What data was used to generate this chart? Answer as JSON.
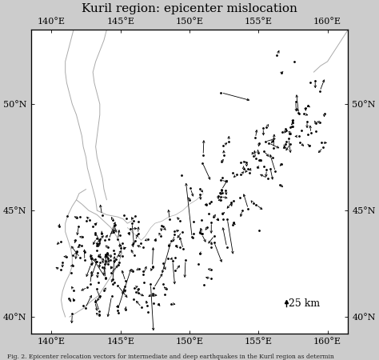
{
  "title": "Kuril region: epicenter mislocation",
  "caption": "Fig. 2. Epicenter relocation vectors for intermediate and deep earthquakes in the Kuril region as determin",
  "lon_min": 138.5,
  "lon_max": 161.5,
  "lat_min": 39.2,
  "lat_max": 53.5,
  "xticks": [
    140,
    145,
    150,
    155,
    160
  ],
  "yticks": [
    40,
    45,
    50
  ],
  "bg_color": "#ffffff",
  "fig_color": "#cccccc",
  "coastline_color": "#aaaaaa",
  "arrow_color": "#000000",
  "dot_color": "#000000",
  "scale_bar_lon": 157.0,
  "scale_bar_lat": 40.5,
  "title_fontsize": 11,
  "tick_fontsize": 8,
  "caption_fontsize": 5.5
}
